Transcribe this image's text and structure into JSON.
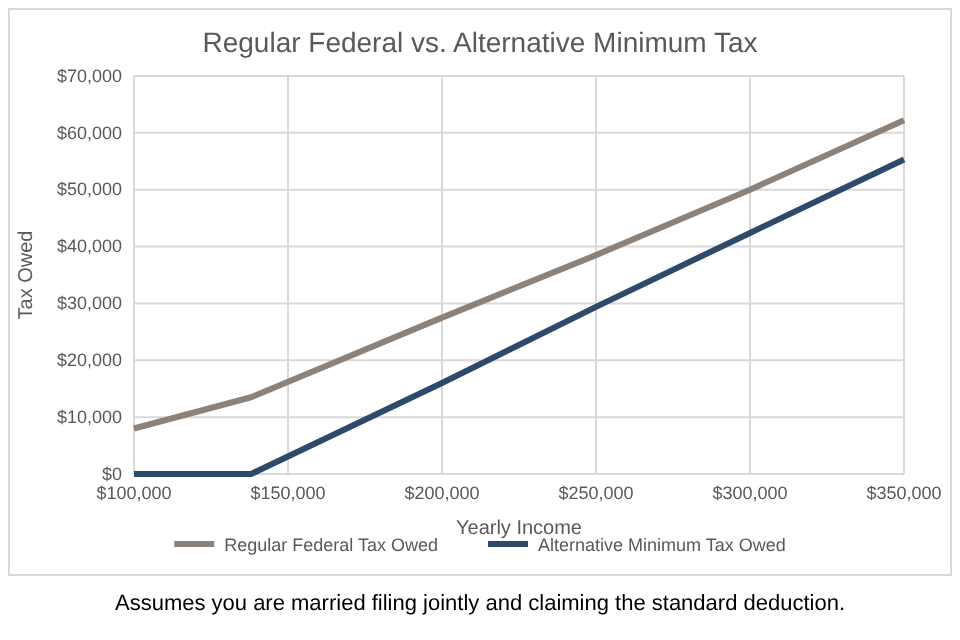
{
  "chart_data": {
    "type": "line",
    "title": "Regular Federal vs. Alternative Minimum Tax",
    "xlabel": "Yearly Income",
    "ylabel": "Tax Owed",
    "x": [
      100000,
      138000,
      200000,
      250000,
      300000,
      350000
    ],
    "series": [
      {
        "name": "Regular Federal Tax Owed",
        "color": "#8c8279",
        "values": [
          8000,
          13500,
          27500,
          38500,
          50000,
          62200
        ]
      },
      {
        "name": "Alternative Minimum Tax Owed",
        "color": "#2e4a6b",
        "values": [
          0,
          0,
          16000,
          29400,
          42400,
          55300
        ]
      }
    ],
    "xlim": [
      100000,
      350000
    ],
    "xticks": [
      {
        "value": 100000,
        "label": "$100,000"
      },
      {
        "value": 150000,
        "label": "$150,000"
      },
      {
        "value": 200000,
        "label": "$200,000"
      },
      {
        "value": 250000,
        "label": "$250,000"
      },
      {
        "value": 300000,
        "label": "$300,000"
      },
      {
        "value": 350000,
        "label": "$350,000"
      }
    ],
    "ylim": [
      0,
      70000
    ],
    "yticks": [
      {
        "value": 0,
        "label": "$0"
      },
      {
        "value": 10000,
        "label": "$10,000"
      },
      {
        "value": 20000,
        "label": "$20,000"
      },
      {
        "value": 30000,
        "label": "$30,000"
      },
      {
        "value": 40000,
        "label": "$40,000"
      },
      {
        "value": 50000,
        "label": "$50,000"
      },
      {
        "value": 60000,
        "label": "$60,000"
      },
      {
        "value": 70000,
        "label": "$70,000"
      }
    ],
    "grid": true,
    "legend": "bottom",
    "marker": "none",
    "line_style": "solid",
    "annotations": [
      "Assumes you are married filing jointly and claiming the standard deduction."
    ]
  }
}
